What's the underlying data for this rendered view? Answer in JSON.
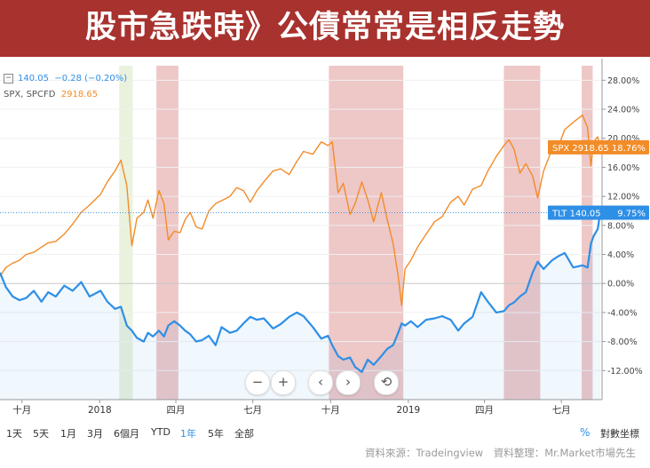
{
  "banner": {
    "title": "股市急跌時》公債常常是相反走勢"
  },
  "legend": {
    "tlt_value": "140.05",
    "tlt_change": "−0.28 (−0.20%)",
    "spx_name": "SPX, SPCFD",
    "spx_value": "2918.65"
  },
  "colors": {
    "spx": "#f28c28",
    "tlt": "#2e8fe6",
    "red_band": "#e8b4b4",
    "green_band": "#e5efd6",
    "banner": "#a8322e"
  },
  "controls": {
    "zoom_out": "−",
    "zoom_in": "+",
    "scroll_left": "‹",
    "scroll_right": "›",
    "reset": "⟲"
  },
  "toolbar": {
    "ranges": [
      "1天",
      "5天",
      "1月",
      "3月",
      "6個月",
      "YTD",
      "1年",
      "5年",
      "全部"
    ],
    "active_range": "1年",
    "percent": "%",
    "log_scale": "對數坐標"
  },
  "source": "資料來源：Tradeingview　資料整理：Mr.Market市場先生",
  "chart_data": {
    "type": "line",
    "y_unit": "%",
    "ylim": [
      -16,
      30
    ],
    "y_ticks": [
      28,
      24,
      20,
      16,
      12,
      8,
      4,
      0,
      -4,
      -8,
      -12
    ],
    "y_tick_labels": [
      "28.00%",
      "24.00%",
      "20.00%",
      "16.00%",
      "12.00%",
      "8.00%",
      "4.00%",
      "0.00%",
      "-4.00%",
      "-8.00%",
      "-12.00%"
    ],
    "x_range": [
      "2017-09-05",
      "2019-08-16"
    ],
    "x_ticks": [
      {
        "date": "2017-10-01",
        "label": "十月"
      },
      {
        "date": "2018-01-01",
        "label": "2018"
      },
      {
        "date": "2018-04-01",
        "label": "四月"
      },
      {
        "date": "2018-07-01",
        "label": "七月"
      },
      {
        "date": "2018-10-01",
        "label": "十月"
      },
      {
        "date": "2019-01-01",
        "label": "2019"
      },
      {
        "date": "2019-04-01",
        "label": "四月"
      },
      {
        "date": "2019-07-01",
        "label": "七月"
      }
    ],
    "highlight_bands": [
      {
        "start": "2018-01-24",
        "end": "2018-02-09",
        "color": "green"
      },
      {
        "start": "2018-03-09",
        "end": "2018-04-04",
        "color": "red"
      },
      {
        "start": "2018-09-29",
        "end": "2018-12-26",
        "color": "red"
      },
      {
        "start": "2019-04-24",
        "end": "2019-06-06",
        "color": "red"
      },
      {
        "start": "2019-07-25",
        "end": "2019-08-07",
        "color": "red"
      }
    ],
    "series": [
      {
        "name": "SPX",
        "points": [
          [
            "2017-09-05",
            1.0
          ],
          [
            "2017-09-12",
            2.2
          ],
          [
            "2017-09-20",
            2.8
          ],
          [
            "2017-09-28",
            3.2
          ],
          [
            "2017-10-06",
            4.0
          ],
          [
            "2017-10-15",
            4.3
          ],
          [
            "2017-10-24",
            5.0
          ],
          [
            "2017-11-01",
            5.6
          ],
          [
            "2017-11-10",
            5.8
          ],
          [
            "2017-11-20",
            6.8
          ],
          [
            "2017-11-30",
            8.2
          ],
          [
            "2017-12-10",
            9.8
          ],
          [
            "2017-12-20",
            10.8
          ],
          [
            "2018-01-02",
            12.3
          ],
          [
            "2018-01-10",
            14.0
          ],
          [
            "2018-01-19",
            15.5
          ],
          [
            "2018-01-26",
            17.0
          ],
          [
            "2018-02-02",
            13.5
          ],
          [
            "2018-02-08",
            5.2
          ],
          [
            "2018-02-14",
            9.0
          ],
          [
            "2018-02-22",
            9.8
          ],
          [
            "2018-02-27",
            11.5
          ],
          [
            "2018-03-05",
            9.0
          ],
          [
            "2018-03-12",
            12.8
          ],
          [
            "2018-03-18",
            11.0
          ],
          [
            "2018-03-23",
            6.0
          ],
          [
            "2018-03-30",
            7.2
          ],
          [
            "2018-04-06",
            7.0
          ],
          [
            "2018-04-12",
            8.8
          ],
          [
            "2018-04-18",
            9.8
          ],
          [
            "2018-04-25",
            7.8
          ],
          [
            "2018-05-02",
            7.5
          ],
          [
            "2018-05-10",
            10.0
          ],
          [
            "2018-05-18",
            11.0
          ],
          [
            "2018-05-25",
            11.4
          ],
          [
            "2018-06-04",
            12.0
          ],
          [
            "2018-06-12",
            13.2
          ],
          [
            "2018-06-20",
            12.8
          ],
          [
            "2018-06-28",
            11.2
          ],
          [
            "2018-07-06",
            12.8
          ],
          [
            "2018-07-14",
            14.0
          ],
          [
            "2018-07-25",
            15.5
          ],
          [
            "2018-08-03",
            15.8
          ],
          [
            "2018-08-13",
            15.0
          ],
          [
            "2018-08-22",
            16.8
          ],
          [
            "2018-08-30",
            18.2
          ],
          [
            "2018-09-10",
            17.8
          ],
          [
            "2018-09-20",
            19.5
          ],
          [
            "2018-09-28",
            19.0
          ],
          [
            "2018-10-03",
            19.5
          ],
          [
            "2018-10-10",
            12.5
          ],
          [
            "2018-10-16",
            13.8
          ],
          [
            "2018-10-24",
            9.5
          ],
          [
            "2018-10-30",
            11.0
          ],
          [
            "2018-11-07",
            14.0
          ],
          [
            "2018-11-14",
            11.5
          ],
          [
            "2018-11-21",
            8.5
          ],
          [
            "2018-11-30",
            12.5
          ],
          [
            "2018-12-07",
            8.8
          ],
          [
            "2018-12-14",
            5.5
          ],
          [
            "2018-12-20",
            1.0
          ],
          [
            "2018-12-24",
            -3.0
          ],
          [
            "2018-12-28",
            2.0
          ],
          [
            "2019-01-04",
            3.2
          ],
          [
            "2019-01-12",
            5.0
          ],
          [
            "2019-01-22",
            6.8
          ],
          [
            "2019-02-01",
            8.5
          ],
          [
            "2019-02-10",
            9.2
          ],
          [
            "2019-02-20",
            11.2
          ],
          [
            "2019-03-01",
            12.0
          ],
          [
            "2019-03-08",
            10.8
          ],
          [
            "2019-03-18",
            13.0
          ],
          [
            "2019-03-28",
            13.5
          ],
          [
            "2019-04-05",
            15.5
          ],
          [
            "2019-04-15",
            17.5
          ],
          [
            "2019-04-24",
            19.0
          ],
          [
            "2019-04-30",
            19.8
          ],
          [
            "2019-05-06",
            18.5
          ],
          [
            "2019-05-13",
            15.2
          ],
          [
            "2019-05-20",
            16.5
          ],
          [
            "2019-05-28",
            14.8
          ],
          [
            "2019-06-03",
            11.8
          ],
          [
            "2019-06-10",
            15.5
          ],
          [
            "2019-06-20",
            18.5
          ],
          [
            "2019-06-28",
            19.0
          ],
          [
            "2019-07-05",
            21.2
          ],
          [
            "2019-07-15",
            22.2
          ],
          [
            "2019-07-26",
            23.2
          ],
          [
            "2019-08-01",
            21.5
          ],
          [
            "2019-08-05",
            16.2
          ],
          [
            "2019-08-08",
            19.5
          ],
          [
            "2019-08-13",
            20.2
          ],
          [
            "2019-08-16",
            18.76
          ]
        ]
      },
      {
        "name": "TLT",
        "points": [
          [
            "2017-09-05",
            1.5
          ],
          [
            "2017-09-12",
            -0.5
          ],
          [
            "2017-09-20",
            -1.8
          ],
          [
            "2017-09-28",
            -2.3
          ],
          [
            "2017-10-06",
            -2.0
          ],
          [
            "2017-10-15",
            -1.0
          ],
          [
            "2017-10-24",
            -2.5
          ],
          [
            "2017-11-01",
            -1.2
          ],
          [
            "2017-11-10",
            -1.8
          ],
          [
            "2017-11-20",
            -0.3
          ],
          [
            "2017-11-30",
            -1.0
          ],
          [
            "2017-12-10",
            0.2
          ],
          [
            "2017-12-20",
            -1.8
          ],
          [
            "2018-01-02",
            -1.0
          ],
          [
            "2018-01-10",
            -2.5
          ],
          [
            "2018-01-19",
            -3.5
          ],
          [
            "2018-01-26",
            -3.2
          ],
          [
            "2018-02-02",
            -5.8
          ],
          [
            "2018-02-08",
            -6.5
          ],
          [
            "2018-02-14",
            -7.5
          ],
          [
            "2018-02-22",
            -8.0
          ],
          [
            "2018-02-27",
            -6.8
          ],
          [
            "2018-03-05",
            -7.3
          ],
          [
            "2018-03-12",
            -6.5
          ],
          [
            "2018-03-18",
            -7.3
          ],
          [
            "2018-03-23",
            -5.8
          ],
          [
            "2018-03-30",
            -5.2
          ],
          [
            "2018-04-06",
            -5.8
          ],
          [
            "2018-04-12",
            -6.5
          ],
          [
            "2018-04-18",
            -7.0
          ],
          [
            "2018-04-25",
            -8.0
          ],
          [
            "2018-05-02",
            -7.8
          ],
          [
            "2018-05-10",
            -7.2
          ],
          [
            "2018-05-18",
            -8.5
          ],
          [
            "2018-05-25",
            -6.0
          ],
          [
            "2018-06-04",
            -6.8
          ],
          [
            "2018-06-12",
            -6.5
          ],
          [
            "2018-06-20",
            -5.5
          ],
          [
            "2018-06-28",
            -4.6
          ],
          [
            "2018-07-06",
            -5.0
          ],
          [
            "2018-07-14",
            -4.8
          ],
          [
            "2018-07-25",
            -6.2
          ],
          [
            "2018-08-03",
            -5.6
          ],
          [
            "2018-08-13",
            -4.6
          ],
          [
            "2018-08-22",
            -4.0
          ],
          [
            "2018-08-30",
            -4.5
          ],
          [
            "2018-09-10",
            -6.0
          ],
          [
            "2018-09-20",
            -7.6
          ],
          [
            "2018-09-28",
            -7.2
          ],
          [
            "2018-10-03",
            -8.5
          ],
          [
            "2018-10-10",
            -10.0
          ],
          [
            "2018-10-16",
            -10.5
          ],
          [
            "2018-10-24",
            -10.2
          ],
          [
            "2018-10-30",
            -11.5
          ],
          [
            "2018-11-07",
            -12.2
          ],
          [
            "2018-11-14",
            -10.5
          ],
          [
            "2018-11-21",
            -11.2
          ],
          [
            "2018-11-30",
            -10.0
          ],
          [
            "2018-12-07",
            -9.0
          ],
          [
            "2018-12-14",
            -8.5
          ],
          [
            "2018-12-20",
            -6.8
          ],
          [
            "2018-12-24",
            -5.5
          ],
          [
            "2018-12-28",
            -5.8
          ],
          [
            "2019-01-04",
            -5.2
          ],
          [
            "2019-01-12",
            -6.0
          ],
          [
            "2019-01-22",
            -5.0
          ],
          [
            "2019-02-01",
            -4.8
          ],
          [
            "2019-02-10",
            -4.5
          ],
          [
            "2019-02-20",
            -5.0
          ],
          [
            "2019-03-01",
            -6.5
          ],
          [
            "2019-03-08",
            -5.5
          ],
          [
            "2019-03-18",
            -4.6
          ],
          [
            "2019-03-28",
            -1.2
          ],
          [
            "2019-04-05",
            -2.5
          ],
          [
            "2019-04-15",
            -4.0
          ],
          [
            "2019-04-24",
            -3.8
          ],
          [
            "2019-04-30",
            -3.0
          ],
          [
            "2019-05-06",
            -2.6
          ],
          [
            "2019-05-13",
            -1.8
          ],
          [
            "2019-05-20",
            -1.2
          ],
          [
            "2019-05-28",
            1.5
          ],
          [
            "2019-06-03",
            3.0
          ],
          [
            "2019-06-10",
            2.0
          ],
          [
            "2019-06-20",
            3.2
          ],
          [
            "2019-06-28",
            3.8
          ],
          [
            "2019-07-05",
            4.2
          ],
          [
            "2019-07-15",
            2.2
          ],
          [
            "2019-07-26",
            2.5
          ],
          [
            "2019-08-01",
            2.2
          ],
          [
            "2019-08-05",
            5.5
          ],
          [
            "2019-08-08",
            6.5
          ],
          [
            "2019-08-13",
            7.5
          ],
          [
            "2019-08-16",
            9.75
          ]
        ]
      }
    ],
    "last_value_labels": [
      {
        "series": "SPX",
        "text": "SPX 2918.65",
        "pct": "18.76%",
        "value": 18.76
      },
      {
        "series": "TLT",
        "text": "TLT 140.05",
        "pct": "9.75%",
        "value": 9.75
      }
    ]
  }
}
